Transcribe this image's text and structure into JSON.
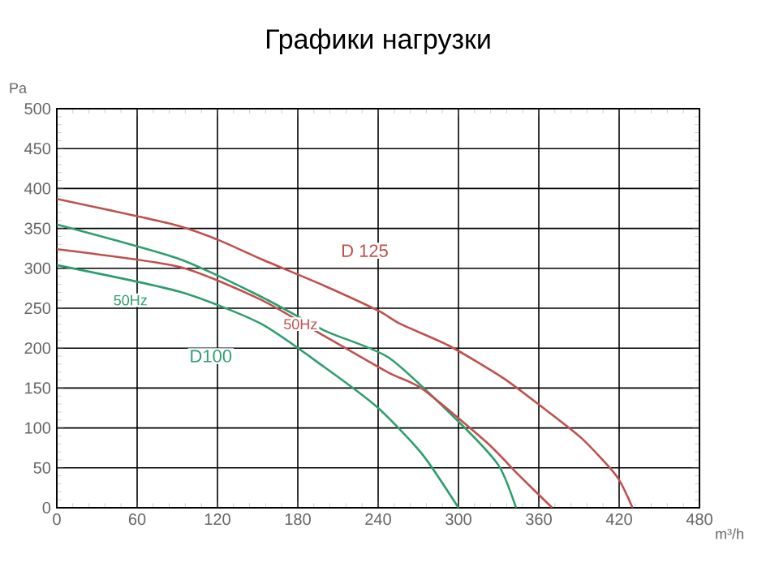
{
  "chart_data": {
    "type": "line",
    "title": "Графики нагрузки",
    "xlabel": "m³/h",
    "ylabel": "Pa",
    "xlim": [
      0,
      480
    ],
    "xticks": [
      0,
      60,
      120,
      180,
      240,
      300,
      360,
      420,
      480
    ],
    "ylim": [
      0,
      500
    ],
    "yticks": [
      0,
      50,
      100,
      150,
      200,
      250,
      300,
      350,
      400,
      450,
      500
    ],
    "grid": true,
    "marker": "none",
    "line_style": "solid",
    "series": [
      {
        "color": "#2e9e6e",
        "x": [
          0,
          91,
          152,
          200,
          248,
          300,
          330,
          343
        ],
        "values": [
          355,
          312,
          265,
          222,
          188,
          108,
          53,
          0
        ]
      },
      {
        "color": "#2e9e6e",
        "x": [
          0,
          91,
          152,
          200,
          240,
          273,
          300
        ],
        "values": [
          304,
          271,
          231,
          176,
          125,
          67,
          0
        ]
      },
      {
        "color": "#c0504d",
        "x": [
          0,
          87,
          120,
          152,
          200,
          240,
          257,
          293,
          333,
          361,
          392,
          418,
          430
        ],
        "values": [
          387,
          355,
          336,
          312,
          278,
          247,
          230,
          203,
          163,
          128,
          87,
          40,
          0
        ]
      },
      {
        "color": "#c0504d",
        "x": [
          0,
          91,
          152,
          200,
          248,
          273,
          321,
          345,
          370
        ],
        "values": [
          324,
          302,
          261,
          215,
          169,
          149,
          82,
          41,
          0
        ]
      }
    ],
    "annotations": [
      {
        "text": "D 125",
        "x": 230,
        "y": 322
      },
      {
        "text": "D100",
        "x": 115,
        "y": 190
      },
      {
        "text": "50Hz",
        "x": 55,
        "y": 260
      },
      {
        "text": "50Hz",
        "x": 182,
        "y": 230
      }
    ]
  }
}
